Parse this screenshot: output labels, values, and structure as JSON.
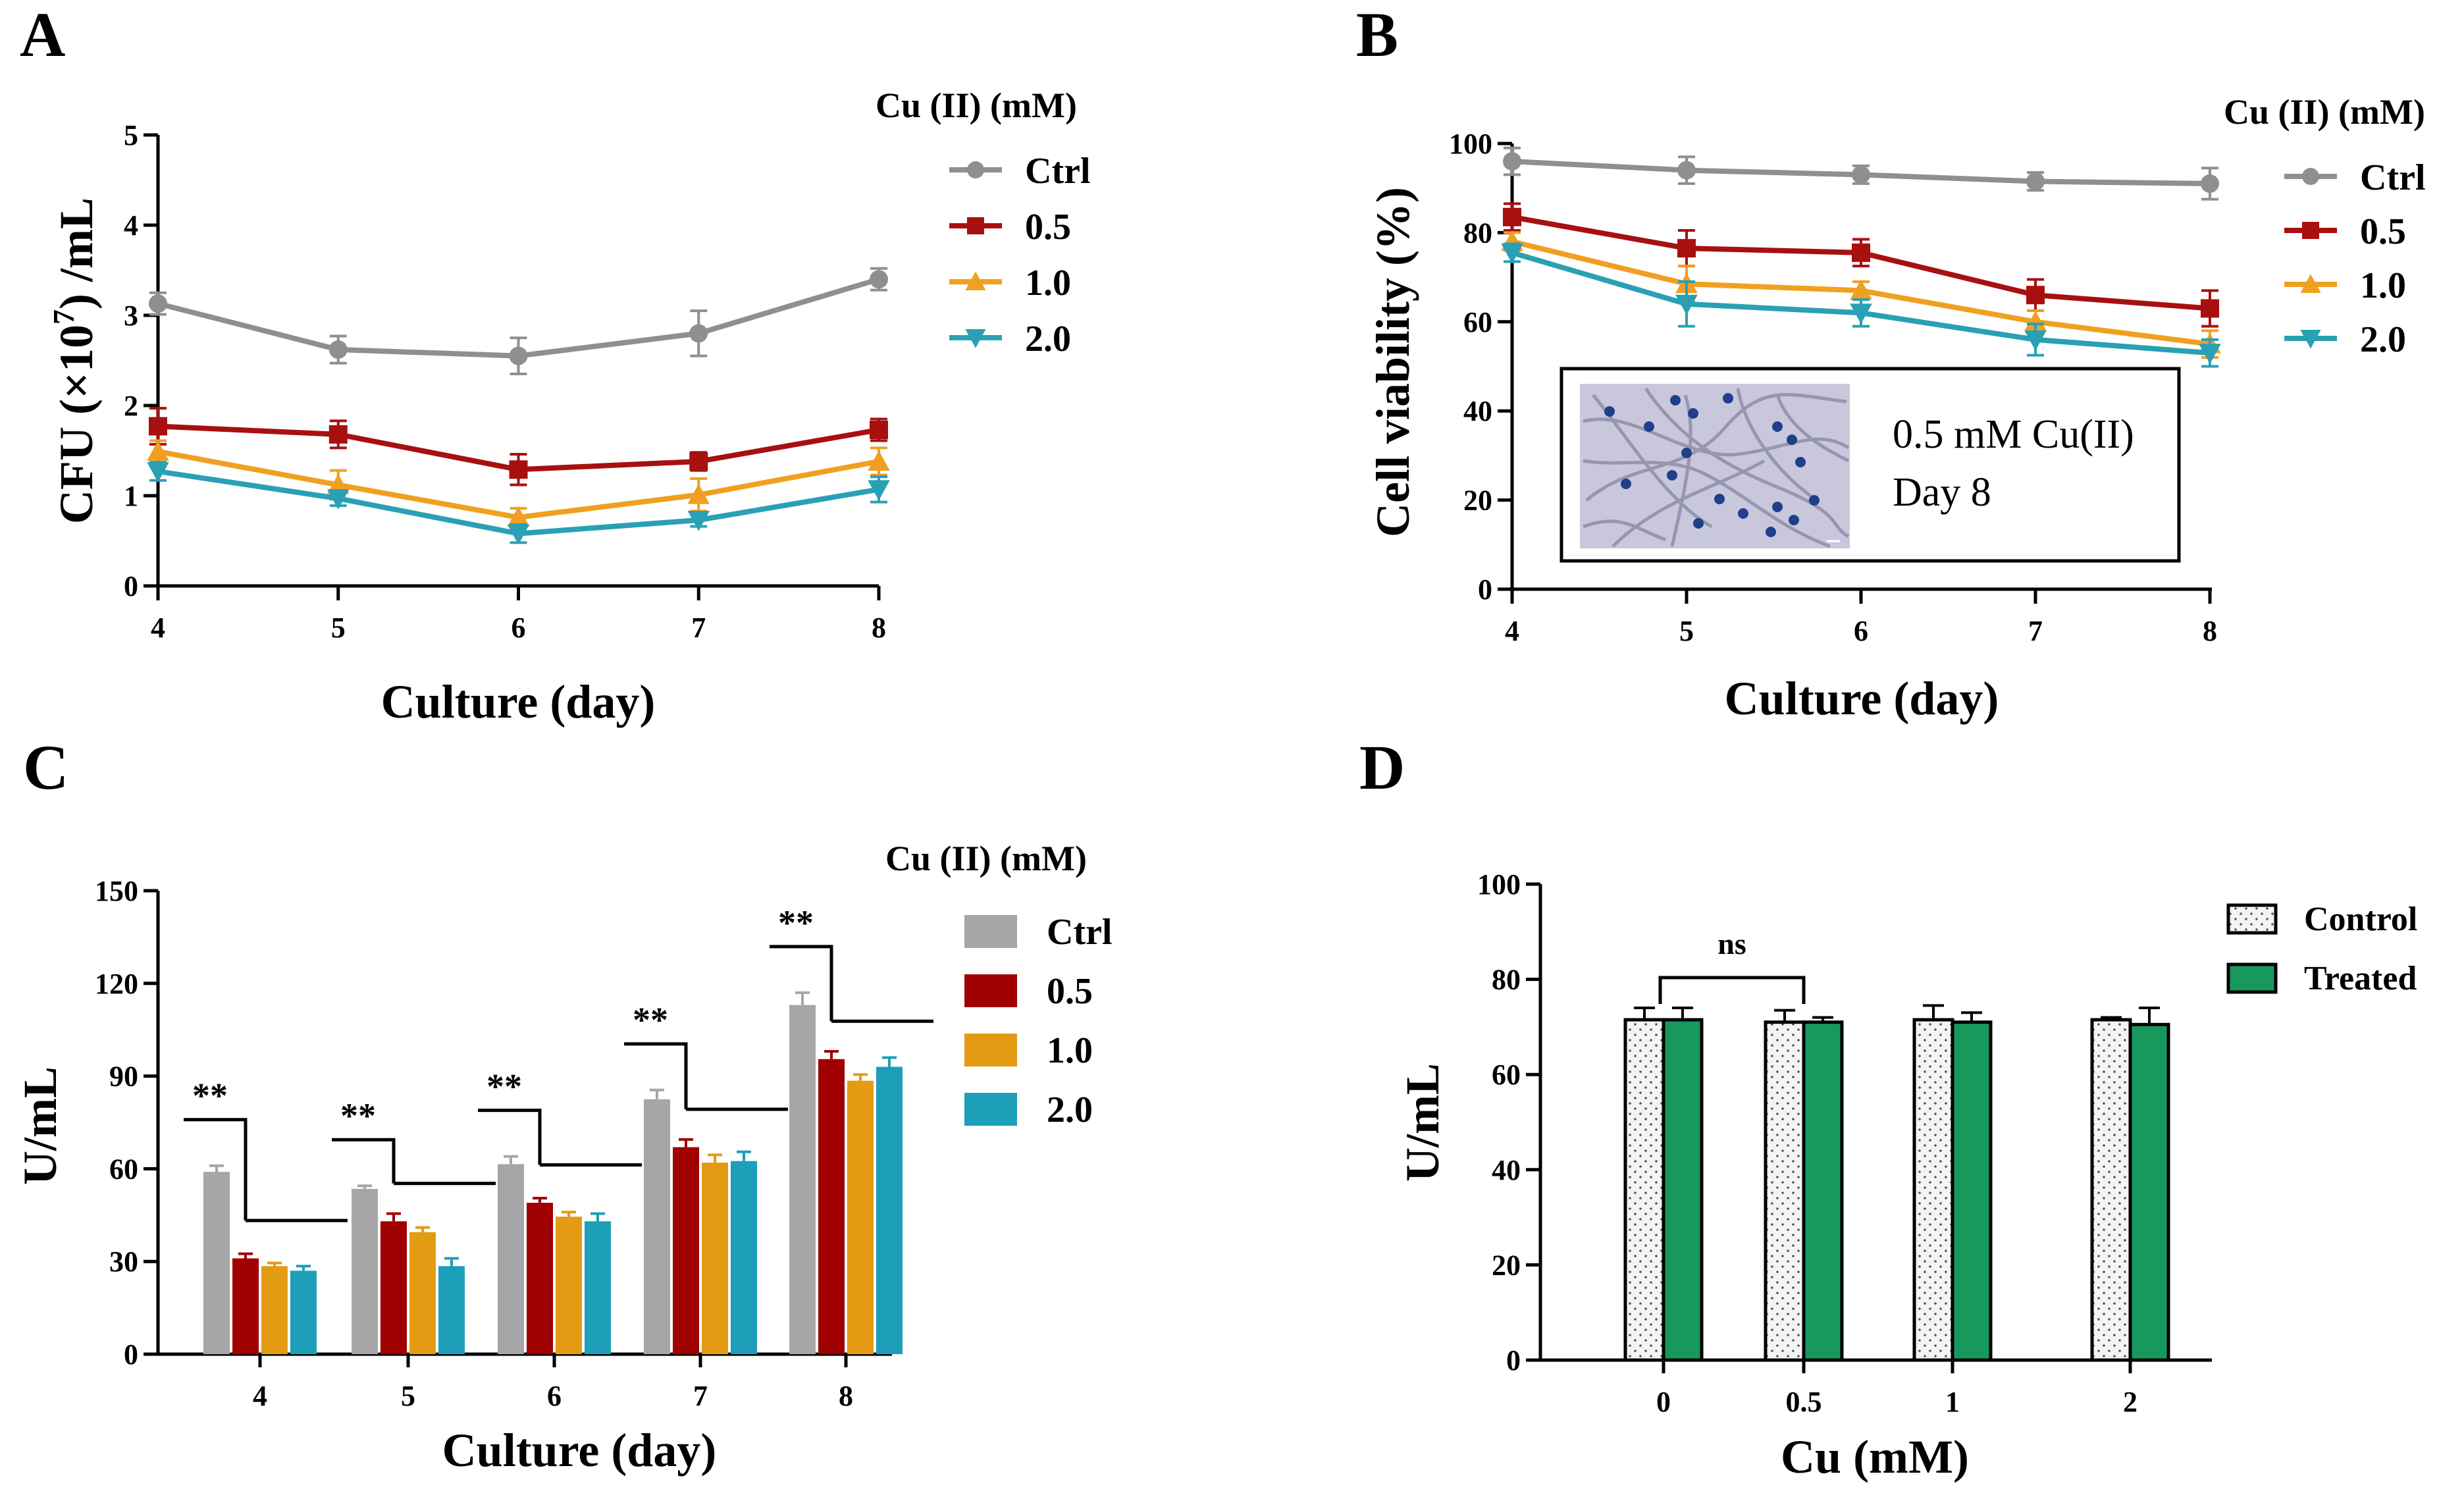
{
  "colors": {
    "Ctrl": "#8f8f8f",
    "0.5": "#a81010",
    "1.0": "#f0a020",
    "2.0": "#2aa0b4",
    "bar_ctrl": "#a6a6a8",
    "bar_05": "#a00000",
    "bar_10": "#e39b13",
    "bar_20": "#1d9fb9",
    "control_fill": "#f2f2f2",
    "treated_fill": "#17995e",
    "inset_bg": "#c9c7dc",
    "inset_dot": "#1f3f8a"
  },
  "chart_data": [
    {
      "panel": "A",
      "type": "line",
      "xlabel": "Culture (day)",
      "ylabel_main": "CFU (",
      "ylabel_mult": "×10",
      "ylabel_exp": "7",
      "ylabel_end": ") /mL",
      "x": [
        4,
        5,
        6,
        7,
        8
      ],
      "xticks": [
        "4",
        "5",
        "6",
        "7",
        "8"
      ],
      "ylim": [
        0,
        5
      ],
      "yticks": [
        "0",
        "1",
        "2",
        "3",
        "4",
        "5"
      ],
      "legend_title": "Cu (II) (mM)",
      "series": [
        {
          "name": "Ctrl",
          "marker": "circle",
          "values": [
            3.13,
            2.62,
            2.55,
            2.8,
            3.4
          ],
          "err": [
            0.12,
            0.15,
            0.2,
            0.25,
            0.12
          ]
        },
        {
          "name": "0.5",
          "marker": "square",
          "values": [
            1.77,
            1.68,
            1.29,
            1.38,
            1.73
          ],
          "err": [
            0.2,
            0.15,
            0.17,
            0.1,
            0.12
          ]
        },
        {
          "name": "1.0",
          "marker": "triangle-up",
          "values": [
            1.49,
            1.12,
            0.76,
            1.01,
            1.38
          ],
          "err": [
            0.12,
            0.16,
            0.1,
            0.18,
            0.15
          ]
        },
        {
          "name": "2.0",
          "marker": "triangle-down",
          "values": [
            1.27,
            0.97,
            0.58,
            0.73,
            1.07
          ],
          "err": [
            0.1,
            0.08,
            0.1,
            0.07,
            0.14
          ]
        }
      ]
    },
    {
      "panel": "B",
      "type": "line",
      "xlabel": "Culture (day)",
      "ylabel": "Cell viability (%)",
      "x": [
        4,
        5,
        6,
        7,
        8
      ],
      "xticks": [
        "4",
        "5",
        "6",
        "7",
        "8"
      ],
      "ylim": [
        0,
        100
      ],
      "yticks": [
        "0",
        "20",
        "40",
        "60",
        "80",
        "100"
      ],
      "legend_title": "Cu (II) (mM)",
      "series": [
        {
          "name": "Ctrl",
          "marker": "circle",
          "values": [
            96,
            94,
            93,
            91.5,
            91
          ],
          "err": [
            3,
            3,
            2,
            2,
            3.5
          ]
        },
        {
          "name": "0.5",
          "marker": "square",
          "values": [
            83.5,
            76.5,
            75.5,
            66,
            63
          ],
          "err": [
            3,
            4,
            3,
            3.5,
            4
          ]
        },
        {
          "name": "1.0",
          "marker": "triangle-up",
          "values": [
            78,
            68.5,
            67,
            60,
            55
          ],
          "err": [
            2,
            4,
            2,
            2.5,
            3
          ]
        },
        {
          "name": "2.0",
          "marker": "triangle-down",
          "values": [
            75.5,
            64,
            62,
            56,
            53
          ],
          "err": [
            2,
            5,
            3,
            3.5,
            3
          ]
        }
      ],
      "inset": {
        "line1": "0.5 mM Cu(II)",
        "line2": "Day 8"
      }
    },
    {
      "panel": "C",
      "type": "bar",
      "xlabel": "Culture (day)",
      "ylabel": "U/mL",
      "categories": [
        "4",
        "5",
        "6",
        "7",
        "8"
      ],
      "ylim": [
        0,
        150
      ],
      "yticks": [
        "0",
        "30",
        "60",
        "90",
        "120",
        "150"
      ],
      "legend_title": "Cu (II) (mM)",
      "series": [
        {
          "name": "Ctrl",
          "values": [
            59,
            53.5,
            61.5,
            82.5,
            113
          ],
          "err": [
            2,
            1,
            2.5,
            3,
            4
          ]
        },
        {
          "name": "0.5",
          "values": [
            31,
            43,
            49,
            67,
            95.5
          ],
          "err": [
            1.5,
            2.5,
            1.5,
            2.5,
            2.5
          ]
        },
        {
          "name": "1.0",
          "values": [
            28.5,
            39.5,
            44.5,
            62,
            88.5
          ],
          "err": [
            1,
            1.5,
            1.5,
            2.5,
            2
          ]
        },
        {
          "name": "2.0",
          "values": [
            27,
            28.5,
            43,
            62.5,
            93
          ],
          "err": [
            1.5,
            2.5,
            2.5,
            3,
            3
          ]
        }
      ],
      "significance": [
        "**",
        "**",
        "**",
        "**",
        "**"
      ]
    },
    {
      "panel": "D",
      "type": "bar",
      "xlabel": "Cu (mM)",
      "ylabel": "U/mL",
      "categories": [
        "0",
        "0.5",
        "1",
        "2"
      ],
      "ylim": [
        0,
        100
      ],
      "yticks": [
        "0",
        "20",
        "40",
        "60",
        "80",
        "100"
      ],
      "series": [
        {
          "name": "Control",
          "values": [
            71.5,
            71,
            71.5,
            71.5
          ],
          "err": [
            2.5,
            2.5,
            3,
            0.5
          ]
        },
        {
          "name": "Treated",
          "values": [
            71.5,
            71,
            71,
            70.5
          ],
          "err": [
            2.5,
            1,
            2,
            3.5
          ]
        }
      ],
      "significance": "ns"
    }
  ]
}
